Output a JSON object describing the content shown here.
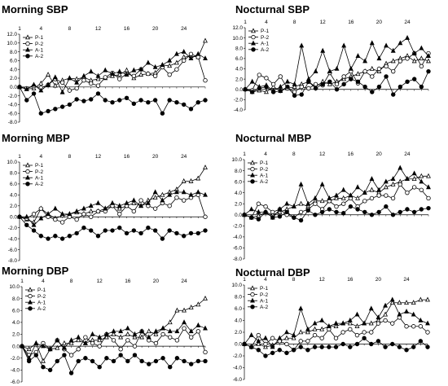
{
  "chart_data": [
    {
      "type": "line",
      "title": "Morning SBP",
      "ylim": [
        -8,
        12
      ],
      "ystep": 2,
      "x_ticks": [
        1,
        4,
        8,
        12,
        16,
        20,
        24
      ],
      "legend_position": "top-left",
      "series": [
        {
          "name": "P-1",
          "marker": "open-triangle",
          "values": [
            0,
            -0.5,
            -0.3,
            0.8,
            2.8,
            0.3,
            1.5,
            2.0,
            1.8,
            2.2,
            1.5,
            1.8,
            2.0,
            2.5,
            2.8,
            3.8,
            2.0,
            2.8,
            3.0,
            3.2,
            5.0,
            4.8,
            5.5,
            6.8,
            7.0,
            6.8,
            10.5
          ]
        },
        {
          "name": "P-2",
          "marker": "open-circle",
          "values": [
            0,
            -0.3,
            0.2,
            -0.2,
            0.5,
            1.8,
            1.0,
            -0.8,
            -0.3,
            1.5,
            0.8,
            0.3,
            2.2,
            3.2,
            1.8,
            3.0,
            2.5,
            4.0,
            3.0,
            2.5,
            4.5,
            2.8,
            4.0,
            6.0,
            7.5,
            6.8,
            1.5
          ]
        },
        {
          "name": "A-1",
          "marker": "filled-triangle",
          "values": [
            0,
            -0.5,
            0.5,
            -0.8,
            0.5,
            2.2,
            -1.2,
            2.0,
            1.0,
            2.5,
            3.5,
            2.5,
            3.8,
            3.0,
            3.5,
            2.8,
            3.8,
            4.0,
            5.5,
            4.5,
            5.0,
            6.0,
            7.5,
            8.0,
            6.5,
            7.5,
            6.5
          ]
        },
        {
          "name": "A-2",
          "marker": "filled-circle",
          "values": [
            0,
            -3.0,
            -1.5,
            -6.0,
            -5.5,
            -5.0,
            -4.5,
            -4.0,
            -2.8,
            -3.2,
            -2.8,
            -1.5,
            -3.0,
            -3.5,
            -3.0,
            -2.5,
            -3.8,
            -3.0,
            -3.5,
            -3.0,
            -6.0,
            -3.0,
            -3.5,
            -4.0,
            -5.0,
            -3.5,
            -3.0
          ]
        }
      ]
    },
    {
      "type": "line",
      "title": "Nocturnal SBP",
      "ylim": [
        -4,
        12
      ],
      "ystep": 2,
      "x_ticks": [
        1,
        4,
        8,
        12,
        16,
        20,
        24
      ],
      "legend_position": "top-left",
      "series": [
        {
          "name": "P-1",
          "marker": "open-triangle",
          "values": [
            0,
            -0.5,
            -0.2,
            -0.5,
            0.5,
            -0.3,
            0.2,
            0.5,
            1.0,
            1.5,
            0.5,
            1.5,
            1.0,
            1.5,
            2.0,
            2.5,
            3.0,
            3.5,
            4.0,
            3.5,
            5.0,
            5.5,
            6.0,
            6.5,
            5.5,
            6.0,
            5.5
          ]
        },
        {
          "name": "P-2",
          "marker": "open-circle",
          "values": [
            0,
            -0.2,
            2.8,
            2.2,
            1.0,
            2.5,
            0.2,
            -0.5,
            0.5,
            0.2,
            1.0,
            0.8,
            3.2,
            1.0,
            2.5,
            3.5,
            1.2,
            3.5,
            2.5,
            4.0,
            4.5,
            3.5,
            5.5,
            6.0,
            7.0,
            4.5,
            7.0
          ]
        },
        {
          "name": "A-1",
          "marker": "filled-triangle",
          "values": [
            0,
            1.5,
            0.5,
            0.8,
            -0.3,
            0.5,
            1.5,
            1.0,
            8.5,
            2.0,
            3.5,
            7.5,
            3.5,
            4.0,
            8.5,
            4.0,
            6.5,
            5.5,
            9.0,
            6.0,
            8.5,
            7.5,
            9.0,
            10.0,
            7.0,
            8.0,
            6.5
          ]
        },
        {
          "name": "A-2",
          "marker": "filled-circle",
          "values": [
            0,
            -0.5,
            0.2,
            0.5,
            -0.5,
            -0.3,
            0.5,
            -1.2,
            -1.0,
            1.5,
            0.2,
            1.0,
            1.5,
            0.0,
            1.0,
            2.0,
            1.5,
            0.5,
            -0.5,
            0.5,
            2.5,
            -1.0,
            0.5,
            1.5,
            2.0,
            0.5,
            3.5
          ]
        }
      ]
    },
    {
      "type": "line",
      "title": "Morning MBP",
      "ylim": [
        -8,
        10
      ],
      "ystep": 2,
      "x_ticks": [
        1,
        4,
        8,
        12,
        16,
        20,
        24
      ],
      "legend_position": "top-left",
      "series": [
        {
          "name": "P-1",
          "marker": "open-triangle",
          "values": [
            0,
            -0.5,
            -1.0,
            1.5,
            0.5,
            -0.3,
            0.2,
            0.5,
            0.8,
            0.5,
            1.0,
            1.0,
            1.5,
            2.0,
            1.5,
            2.0,
            2.5,
            2.0,
            3.0,
            3.5,
            4.0,
            4.5,
            5.0,
            6.5,
            6.5,
            7.0,
            9.0
          ]
        },
        {
          "name": "P-2",
          "marker": "open-circle",
          "values": [
            0,
            -0.3,
            0.5,
            1.5,
            0.0,
            -0.5,
            -1.0,
            0.0,
            -0.5,
            0.5,
            0.0,
            1.0,
            1.0,
            2.0,
            0.5,
            2.0,
            1.0,
            3.0,
            2.0,
            1.5,
            2.5,
            2.0,
            3.5,
            3.0,
            3.5,
            4.0,
            0.0
          ]
        },
        {
          "name": "A-1",
          "marker": "filled-triangle",
          "values": [
            0,
            0.0,
            -1.5,
            -0.3,
            0.5,
            1.5,
            0.5,
            0.5,
            1.0,
            1.5,
            2.0,
            2.5,
            1.5,
            2.5,
            2.0,
            2.5,
            3.0,
            2.0,
            2.5,
            4.5,
            3.0,
            4.0,
            4.5,
            4.5,
            4.0,
            4.5,
            4.0
          ]
        },
        {
          "name": "A-2",
          "marker": "filled-circle",
          "values": [
            0,
            -1.5,
            -2.5,
            -3.5,
            -4.0,
            -3.5,
            -4.0,
            -3.5,
            -3.0,
            -2.0,
            -2.5,
            -3.5,
            -2.5,
            -2.5,
            -2.0,
            -3.0,
            -2.5,
            -3.0,
            -2.0,
            -2.5,
            -4.0,
            -2.5,
            -3.0,
            -3.5,
            -3.0,
            -3.0,
            -2.5
          ]
        }
      ]
    },
    {
      "type": "line",
      "title": "Nocturnal MBP",
      "ylim": [
        -8,
        10
      ],
      "ystep": 2,
      "x_ticks": [
        1,
        4,
        8,
        12,
        16,
        20,
        24
      ],
      "legend_position": "top-left",
      "series": [
        {
          "name": "P-1",
          "marker": "open-triangle",
          "values": [
            0,
            -0.5,
            -0.2,
            0.5,
            0.0,
            0.5,
            1.0,
            1.5,
            2.0,
            1.5,
            2.5,
            2.5,
            2.5,
            3.0,
            3.0,
            3.5,
            3.0,
            4.0,
            4.5,
            4.0,
            5.0,
            5.5,
            6.0,
            6.5,
            6.5,
            7.0,
            7.0
          ]
        },
        {
          "name": "P-2",
          "marker": "open-circle",
          "values": [
            0,
            -0.5,
            2.0,
            1.5,
            0.5,
            1.0,
            0.0,
            -0.5,
            0.5,
            1.0,
            2.0,
            1.0,
            2.5,
            1.5,
            2.0,
            3.0,
            1.5,
            2.5,
            3.0,
            3.5,
            3.5,
            3.0,
            5.5,
            4.0,
            5.0,
            4.5,
            3.0
          ]
        },
        {
          "name": "A-1",
          "marker": "filled-triangle",
          "values": [
            0,
            1.0,
            0.5,
            0.5,
            -0.5,
            1.0,
            2.0,
            1.5,
            5.5,
            2.0,
            3.0,
            5.5,
            3.0,
            3.5,
            4.5,
            3.5,
            5.0,
            4.0,
            6.5,
            4.5,
            6.0,
            6.5,
            8.5,
            6.5,
            7.5,
            6.0,
            5.0
          ]
        },
        {
          "name": "A-2",
          "marker": "filled-circle",
          "values": [
            0,
            -0.5,
            -0.8,
            0.5,
            -0.5,
            -0.3,
            0.5,
            -0.5,
            -1.0,
            0.8,
            0.0,
            0.5,
            1.0,
            0.5,
            0.3,
            1.5,
            1.0,
            0.5,
            0.0,
            0.5,
            1.5,
            0.0,
            0.5,
            1.0,
            0.5,
            1.0,
            1.2
          ]
        }
      ]
    },
    {
      "type": "line",
      "title": "Morning DBP",
      "ylim": [
        -6,
        10
      ],
      "ystep": 2,
      "x_ticks": [
        1,
        4,
        8,
        12,
        16,
        20,
        24
      ],
      "legend_position": "top-left",
      "series": [
        {
          "name": "P-1",
          "marker": "open-triangle",
          "values": [
            0,
            -0.5,
            0.5,
            -2.5,
            -0.5,
            -0.3,
            0.5,
            0.5,
            1.0,
            0.5,
            1.0,
            1.0,
            1.5,
            2.0,
            1.5,
            2.0,
            1.5,
            1.5,
            2.5,
            2.0,
            3.0,
            4.0,
            6.0,
            6.0,
            6.5,
            7.0,
            8.0
          ]
        },
        {
          "name": "P-2",
          "marker": "open-circle",
          "values": [
            0,
            -1.5,
            -1.0,
            0.5,
            -0.5,
            1.0,
            -0.5,
            -1.5,
            -0.5,
            1.5,
            0.5,
            0.0,
            2.0,
            1.0,
            -0.5,
            1.0,
            0.0,
            2.5,
            1.0,
            0.5,
            2.0,
            1.5,
            1.0,
            3.0,
            1.5,
            2.5,
            -1.0
          ]
        },
        {
          "name": "A-1",
          "marker": "filled-triangle",
          "values": [
            0,
            -2.0,
            0.5,
            0.0,
            -0.5,
            1.0,
            -0.3,
            1.0,
            1.5,
            0.5,
            2.0,
            1.5,
            2.0,
            2.5,
            2.5,
            3.0,
            2.0,
            2.5,
            1.5,
            2.5,
            3.0,
            2.5,
            2.5,
            4.0,
            2.5,
            3.5,
            3.0
          ]
        },
        {
          "name": "A-2",
          "marker": "filled-circle",
          "values": [
            0,
            -2.5,
            -1.5,
            -3.5,
            -4.0,
            -2.5,
            -1.5,
            -4.5,
            -2.5,
            -2.0,
            -2.5,
            -3.5,
            -2.0,
            -2.5,
            -1.5,
            -2.5,
            -1.5,
            -2.5,
            -3.0,
            -2.5,
            -2.0,
            -3.5,
            -2.0,
            -2.5,
            -3.0,
            -2.5,
            -2.5
          ]
        }
      ]
    },
    {
      "type": "line",
      "title": "Nocturnal DBP",
      "ylim": [
        -6,
        10
      ],
      "ystep": 2,
      "x_ticks": [
        1,
        4,
        8,
        12,
        16,
        20,
        24
      ],
      "legend_position": "top-left",
      "series": [
        {
          "name": "P-1",
          "marker": "open-triangle",
          "values": [
            0,
            -0.5,
            0.0,
            -0.5,
            -0.2,
            0.5,
            1.0,
            1.0,
            2.0,
            2.0,
            2.5,
            2.5,
            3.0,
            3.0,
            3.5,
            3.5,
            3.0,
            3.5,
            3.5,
            4.0,
            5.0,
            7.0,
            7.0,
            7.0,
            7.0,
            7.5,
            7.5
          ]
        },
        {
          "name": "P-2",
          "marker": "open-circle",
          "values": [
            0,
            -0.5,
            1.5,
            0.0,
            1.0,
            0.5,
            0.0,
            -1.0,
            0.5,
            0.5,
            1.5,
            1.0,
            2.5,
            1.0,
            2.0,
            2.5,
            1.5,
            2.0,
            2.0,
            3.5,
            4.0,
            3.5,
            4.5,
            3.0,
            3.0,
            3.0,
            2.0
          ]
        },
        {
          "name": "A-1",
          "marker": "filled-triangle",
          "values": [
            0,
            1.5,
            0.5,
            1.0,
            -0.5,
            1.0,
            2.0,
            1.5,
            6.0,
            2.5,
            3.5,
            4.0,
            3.0,
            3.5,
            3.5,
            4.0,
            5.0,
            3.5,
            6.0,
            4.5,
            6.5,
            7.5,
            5.0,
            5.5,
            5.0,
            4.0,
            3.5
          ]
        },
        {
          "name": "A-2",
          "marker": "filled-circle",
          "values": [
            0,
            -0.5,
            -1.0,
            -2.0,
            -1.5,
            -1.0,
            -1.5,
            -1.0,
            -0.5,
            -1.0,
            -0.5,
            -0.5,
            -0.5,
            -0.5,
            0.0,
            -0.5,
            0.0,
            1.0,
            0.0,
            0.5,
            -0.5,
            0.0,
            -0.5,
            -1.0,
            -0.5,
            0.5,
            -0.5
          ]
        }
      ]
    }
  ]
}
